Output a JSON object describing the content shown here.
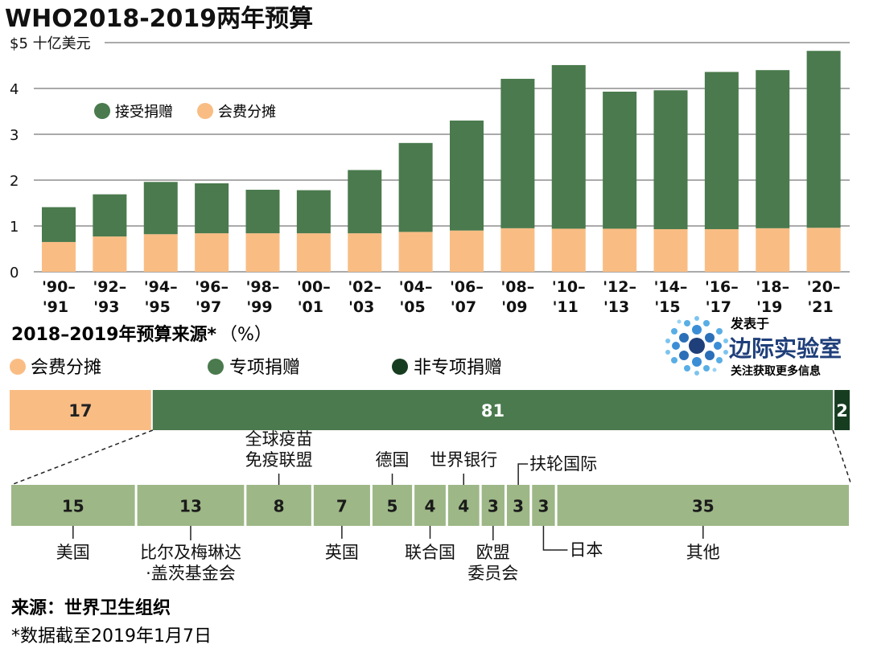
{
  "title": "WHO2018-2019两年预算",
  "colors": {
    "voluntary": "#4a7a4d",
    "assessed": "#f9bd84",
    "specified": "#4a7a4d",
    "nonspecified": "#173d21",
    "donor_bar": "#9db787",
    "grid": "#555555",
    "text": "#111111"
  },
  "brand": {
    "top": "发表于",
    "name": "边际实验室",
    "sub": "关注获取更多信息",
    "logo_icon": "dot-cluster-logo"
  },
  "source": "来源：世界卫生组织",
  "footnote": "*数据截至2019年1月7日",
  "chart_data": [
    {
      "type": "bar",
      "stacked": true,
      "title": "WHO2018-2019两年预算",
      "ylabel": "$5 十亿美元",
      "ylim": [
        0,
        5
      ],
      "yticks": [
        {
          "value": 0,
          "label": "0"
        },
        {
          "value": 1,
          "label": "1"
        },
        {
          "value": 2,
          "label": "2"
        },
        {
          "value": 3,
          "label": "3"
        },
        {
          "value": 4,
          "label": "4"
        },
        {
          "value": 5,
          "label": "$5 十亿美元"
        }
      ],
      "grid": true,
      "legend_position": "top-left",
      "categories": [
        [
          "'90–",
          "'91"
        ],
        [
          "'92–",
          "'93"
        ],
        [
          "'94–",
          "'95"
        ],
        [
          "'96–",
          "'97"
        ],
        [
          "'98–",
          "'99"
        ],
        [
          "'00–",
          "'01"
        ],
        [
          "'02–",
          "'03"
        ],
        [
          "'04–",
          "'05"
        ],
        [
          "'06–",
          "'07"
        ],
        [
          "'08–",
          "'09"
        ],
        [
          "'10–",
          "'11"
        ],
        [
          "'12–",
          "'13"
        ],
        [
          "'14–",
          "'15"
        ],
        [
          "'16–",
          "'17"
        ],
        [
          "'18–",
          "'19"
        ],
        [
          "'20–",
          "'21"
        ]
      ],
      "series": [
        {
          "name": "会费分摊",
          "color_key": "assessed",
          "values": [
            0.65,
            0.77,
            0.82,
            0.84,
            0.84,
            0.84,
            0.84,
            0.87,
            0.9,
            0.95,
            0.94,
            0.94,
            0.93,
            0.93,
            0.95,
            0.96
          ]
        },
        {
          "name": "接受捐赠",
          "color_key": "voluntary",
          "values": [
            0.76,
            0.92,
            1.14,
            1.09,
            0.95,
            0.94,
            1.38,
            1.94,
            2.4,
            3.26,
            3.57,
            2.99,
            3.03,
            3.43,
            3.45,
            3.86
          ]
        }
      ]
    },
    {
      "type": "bar",
      "orientation": "horizontal-stacked",
      "title": "2018–2019年预算来源*",
      "unit": "（%）",
      "segments": [
        {
          "name": "会费分摊",
          "value": 17,
          "label": "17",
          "color_key": "assessed"
        },
        {
          "name": "专项捐赠",
          "value": 81,
          "label": "81",
          "color_key": "specified"
        },
        {
          "name": "非专项捐赠",
          "value": 2,
          "label": "2",
          "color_key": "nonspecified"
        }
      ]
    },
    {
      "type": "bar",
      "orientation": "horizontal-stacked",
      "segments": [
        {
          "value": 15,
          "label": "15",
          "name": "美国"
        },
        {
          "value": 13,
          "label": "13",
          "name": "比尔及梅琳达·盖茨基金会"
        },
        {
          "value": 8,
          "label": "8",
          "name": "全球疫苗免疫联盟"
        },
        {
          "value": 7,
          "label": "7",
          "name": "英国"
        },
        {
          "value": 5,
          "label": "5",
          "name": "德国"
        },
        {
          "value": 4,
          "label": "4",
          "name": "联合国"
        },
        {
          "value": 4,
          "label": "4",
          "name": "世界银行"
        },
        {
          "value": 3,
          "label": "3",
          "name": "欧盟委员会"
        },
        {
          "value": 3,
          "label": "3",
          "name": "扶轮国际"
        },
        {
          "value": 3,
          "label": "3",
          "name": "日本"
        },
        {
          "value": 35,
          "label": "35",
          "name": "其他"
        }
      ]
    }
  ]
}
